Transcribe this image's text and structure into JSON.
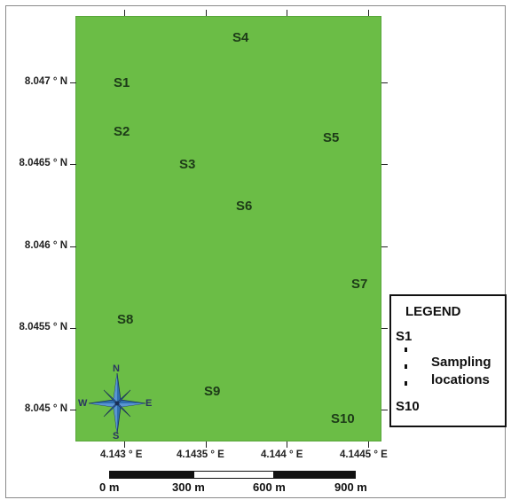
{
  "map": {
    "background_color": "#6bbd46",
    "sites": [
      {
        "id": "S1",
        "label": "S1"
      },
      {
        "id": "S2",
        "label": "S2"
      },
      {
        "id": "S3",
        "label": "S3"
      },
      {
        "id": "S4",
        "label": "S4"
      },
      {
        "id": "S5",
        "label": "S5"
      },
      {
        "id": "S6",
        "label": "S6"
      },
      {
        "id": "S7",
        "label": "S7"
      },
      {
        "id": "S8",
        "label": "S8"
      },
      {
        "id": "S9",
        "label": "S9"
      },
      {
        "id": "S10",
        "label": "S10"
      }
    ],
    "lat_labels": [
      "8.047 ° N",
      "8.0465 ° N",
      "8.046 ° N",
      "8.0455 ° N",
      "8.045 ° N"
    ],
    "lon_labels": [
      "4.143 ° E",
      "4.1435 ° E",
      "4.144 ° E",
      "4.1445 ° E"
    ]
  },
  "legend": {
    "title": "LEGEND",
    "first": "S1",
    "last": "S10",
    "line1": "Sampling",
    "line2": "locations"
  },
  "scale": {
    "labels": [
      "0 m",
      "300 m",
      "600 m",
      "900 m"
    ]
  },
  "compass": {
    "north": "N",
    "south": "S",
    "east": "E",
    "west": "W",
    "icon": "compass-rose-icon"
  }
}
